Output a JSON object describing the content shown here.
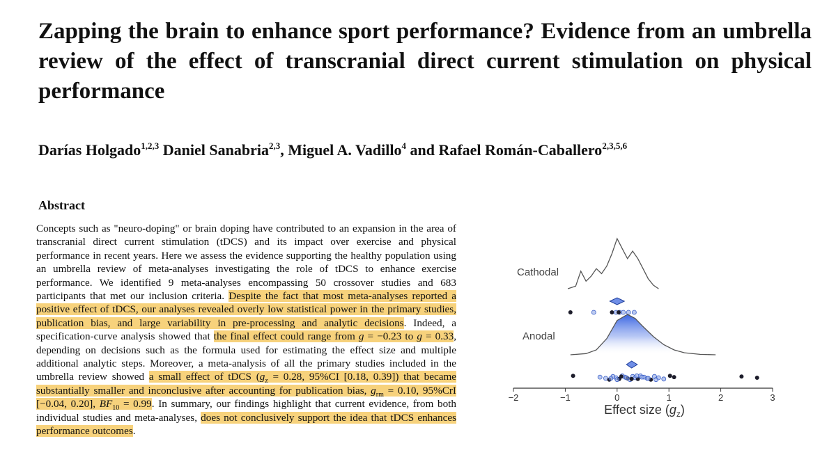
{
  "paper": {
    "title": "Zapping the brain to enhance sport performance? Evidence from an umbrella review of the effect of transcranial direct current stimulation on physical performance",
    "authors": [
      {
        "name": "Darías Holgado",
        "affil": "1,2,3",
        "sep": " "
      },
      {
        "name": "Daniel Sanabria",
        "affil": "2,3",
        "sep": ", "
      },
      {
        "name": "Miguel A. Vadillo",
        "affil": "4",
        "sep": " and "
      },
      {
        "name": "Rafael Román-Caballero",
        "affil": "2,3,5,6",
        "sep": ""
      }
    ],
    "abstract_heading": "Abstract",
    "abstract": {
      "p1": "Concepts such as \"neuro-doping\" or brain doping have contributed to an expansion in the area of transcranial direct current stimulation (tDCS) and its impact over exercise and physical performance in recent years. Here we assess the evidence supporting the healthy population using an umbrella review of meta-analyses investigating the role of tDCS to enhance exercise performance. We identified 9 meta-analyses encompassing 50 crossover studies and 683 participants that met our inclusion criteria. ",
      "h1": "Despite the fact that most meta-analyses reported a positive effect of tDCS, our analyses revealed overly low statistical power in the primary studies, publication bias, and large variability in pre-processing and analytic decisions",
      "p2": ". Indeed, a specification-curve analysis showed that ",
      "h2a": "the final effect could range from ",
      "g_sym1": "g",
      "h2b": " = −0.23 to ",
      "g_sym2": "g",
      "h2c": " = 0.33",
      "p3": ", depending on decisions such as the formula used for estimating the effect size and multiple additional analytic steps. Moreover, a meta-analysis of all the primary studies included in the umbrella review showed ",
      "h3a": "a small effect of tDCS (",
      "gz_sym": "g",
      "gz_sub": "z",
      "h3b": " = 0.28, 95%CI [0.18, 0.39]) that became substantially smaller and inconclusive after accounting for publication bias, ",
      "grm_sym": "g",
      "grm_sub": "rm",
      "h3c": " = 0.10, 95%CrI [−0.04, 0.20], ",
      "bf_sym": "BF",
      "bf_sub": "10",
      "h3d": " = 0.99",
      "p4": ". In summary, our findings highlight that current evidence, from both individual studies and meta-analyses, ",
      "h4": "does not conclusively support the idea that tDCS enhances performance outcomes",
      "p5": "."
    }
  },
  "figure": {
    "labels": {
      "cathodal": "Cathodal",
      "anodal": "Anodal"
    },
    "xlabel": {
      "main": "Effect size (",
      "sym": "g",
      "sub": "z",
      "close": ")"
    },
    "ticks": [
      "−2",
      "−1",
      "0",
      "1",
      "2",
      "3"
    ],
    "colors": {
      "accent": "#3a63d8",
      "point": "#8fa6e6",
      "dark": "#1c1c2a",
      "axis": "#333333"
    },
    "chart_data": {
      "type": "scatter",
      "xlim": [
        -2,
        3
      ],
      "xticks": [
        -2,
        -1,
        0,
        1,
        2,
        3
      ],
      "xlabel": "Effect size (gz)",
      "series": [
        {
          "name": "Cathodal",
          "pooled_estimate": 0.0,
          "ci": [
            -0.14,
            0.14
          ],
          "density": [
            [
              -0.95,
              0
            ],
            [
              -0.8,
              0.05
            ],
            [
              -0.7,
              0.35
            ],
            [
              -0.6,
              0.15
            ],
            [
              -0.5,
              0.25
            ],
            [
              -0.4,
              0.4
            ],
            [
              -0.3,
              0.3
            ],
            [
              -0.2,
              0.45
            ],
            [
              -0.1,
              0.7
            ],
            [
              0.0,
              1.0
            ],
            [
              0.1,
              0.8
            ],
            [
              0.2,
              0.6
            ],
            [
              0.3,
              0.75
            ],
            [
              0.4,
              0.6
            ],
            [
              0.5,
              0.4
            ],
            [
              0.6,
              0.2
            ],
            [
              0.7,
              0.07
            ],
            [
              0.8,
              0.0
            ]
          ],
          "points": [
            {
              "x": -0.9,
              "dark": true
            },
            {
              "x": -0.45,
              "dark": false
            },
            {
              "x": -0.1,
              "dark": true
            },
            {
              "x": -0.02,
              "dark": false
            },
            {
              "x": 0.05,
              "dark": false
            },
            {
              "x": 0.12,
              "dark": false
            },
            {
              "x": 0.22,
              "dark": false
            },
            {
              "x": 0.33,
              "dark": false
            },
            {
              "x": 0.03,
              "dark": true
            }
          ]
        },
        {
          "name": "Anodal",
          "pooled_estimate": 0.28,
          "ci": [
            0.18,
            0.39
          ],
          "density": [
            [
              -0.9,
              0
            ],
            [
              -0.6,
              0.03
            ],
            [
              -0.4,
              0.12
            ],
            [
              -0.2,
              0.4
            ],
            [
              0.0,
              0.85
            ],
            [
              0.2,
              1.0
            ],
            [
              0.35,
              0.9
            ],
            [
              0.5,
              0.7
            ],
            [
              0.7,
              0.45
            ],
            [
              0.9,
              0.25
            ],
            [
              1.1,
              0.12
            ],
            [
              1.3,
              0.05
            ],
            [
              1.6,
              0.01
            ],
            [
              1.9,
              0
            ]
          ],
          "points": [
            {
              "x": -0.85,
              "dark": true
            },
            {
              "x": -0.33,
              "dark": false
            },
            {
              "x": -0.22,
              "dark": false
            },
            {
              "x": -0.15,
              "dark": true
            },
            {
              "x": -0.08,
              "dark": false
            },
            {
              "x": -0.02,
              "dark": false
            },
            {
              "x": 0.04,
              "dark": true
            },
            {
              "x": 0.1,
              "dark": false
            },
            {
              "x": 0.15,
              "dark": false
            },
            {
              "x": 0.2,
              "dark": true
            },
            {
              "x": 0.25,
              "dark": false
            },
            {
              "x": 0.3,
              "dark": false
            },
            {
              "x": 0.35,
              "dark": false
            },
            {
              "x": 0.4,
              "dark": true
            },
            {
              "x": 0.45,
              "dark": false
            },
            {
              "x": 0.52,
              "dark": false
            },
            {
              "x": 0.58,
              "dark": false
            },
            {
              "x": 0.65,
              "dark": true
            },
            {
              "x": 0.72,
              "dark": false
            },
            {
              "x": 0.8,
              "dark": false
            },
            {
              "x": 0.9,
              "dark": false
            },
            {
              "x": 1.02,
              "dark": true
            },
            {
              "x": 1.1,
              "dark": true
            },
            {
              "x": -0.12,
              "dark": false
            },
            {
              "x": 0.0,
              "dark": false
            },
            {
              "x": 0.08,
              "dark": true
            },
            {
              "x": 0.18,
              "dark": false
            },
            {
              "x": 0.28,
              "dark": true
            },
            {
              "x": 0.38,
              "dark": false
            },
            {
              "x": 0.48,
              "dark": false
            },
            {
              "x": 0.6,
              "dark": false
            },
            {
              "x": 0.75,
              "dark": false
            },
            {
              "x": 2.4,
              "dark": true
            },
            {
              "x": 2.7,
              "dark": true
            }
          ]
        }
      ]
    }
  }
}
